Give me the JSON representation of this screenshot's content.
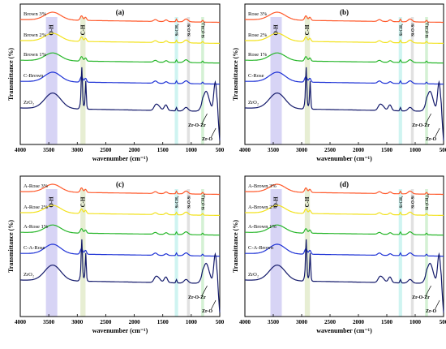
{
  "chart_data": [
    {
      "type": "line",
      "panel": "(a)",
      "xlabel": "wavenumber (cm⁻¹)",
      "ylabel": "Transmittance (%)",
      "xlim": [
        4000,
        500
      ],
      "xticks": [
        4000,
        3500,
        3000,
        2500,
        2000,
        1500,
        1000,
        500
      ],
      "band_labels": [
        "O-H",
        "C-H",
        "Si-CH₃",
        "Si-O-Si",
        "Si-(CH₃)₃"
      ],
      "band_centers": [
        3450,
        2900,
        1260,
        1050,
        800
      ],
      "peak_annotations": [
        "Zr-O-Zr",
        "Zr-O"
      ],
      "series": [
        {
          "name": "Brown 3%",
          "color": "#ff5a2c"
        },
        {
          "name": "Brown 2%",
          "color": "#f2e21e"
        },
        {
          "name": "Brown 1%",
          "color": "#27b62a"
        },
        {
          "name": "C-Brown",
          "color": "#1f33d6"
        },
        {
          "name": "ZrO₂",
          "color": "#141a6b"
        }
      ]
    },
    {
      "type": "line",
      "panel": "(b)",
      "xlabel": "wavenumber (cm⁻¹)",
      "ylabel": "Transmittance (%)",
      "xlim": [
        4000,
        500
      ],
      "xticks": [
        4000,
        3500,
        3000,
        2500,
        2000,
        1500,
        1000,
        500
      ],
      "band_labels": [
        "O-H",
        "C-H",
        "Si-CH₃",
        "Si-O-Si",
        "Si-(CH₃)₃"
      ],
      "band_centers": [
        3450,
        2900,
        1260,
        1050,
        800
      ],
      "peak_annotations": [
        "Zr-O-Zr",
        "Zr-O"
      ],
      "series": [
        {
          "name": "Rose 3%",
          "color": "#ff5a2c"
        },
        {
          "name": "Rose 2%",
          "color": "#f2e21e"
        },
        {
          "name": "Rose 1%",
          "color": "#27b62a"
        },
        {
          "name": "C-Rose",
          "color": "#1f33d6"
        },
        {
          "name": "ZrO₂",
          "color": "#141a6b"
        }
      ]
    },
    {
      "type": "line",
      "panel": "(c)",
      "xlabel": "wavenumber (cm⁻¹)",
      "ylabel": "Transmittance (%)",
      "xlim": [
        4000,
        500
      ],
      "xticks": [
        4000,
        3500,
        3000,
        2500,
        2000,
        1500,
        1000,
        500
      ],
      "band_labels": [
        "O-H",
        "C-H",
        "Si-CH₃",
        "Si-O-Si",
        "Si-(CH₃)₃"
      ],
      "band_centers": [
        3450,
        2900,
        1260,
        1050,
        800
      ],
      "peak_annotations": [
        "Zr-O-Zr",
        "Zr-O"
      ],
      "series": [
        {
          "name": "A-Rose 3%",
          "color": "#ff5a2c"
        },
        {
          "name": "A-Rose 2%",
          "color": "#f2e21e"
        },
        {
          "name": "A-Rose 1%",
          "color": "#27b62a"
        },
        {
          "name": "C-A-Rose",
          "color": "#1f33d6"
        },
        {
          "name": "ZrO₂",
          "color": "#141a6b"
        }
      ]
    },
    {
      "type": "line",
      "panel": "(d)",
      "xlabel": "wavenumber (cm⁻¹)",
      "ylabel": "Transmittance (%)",
      "xlim": [
        4000,
        500
      ],
      "xticks": [
        4000,
        3500,
        3000,
        2500,
        2000,
        1500,
        1000,
        500
      ],
      "band_labels": [
        "O-H",
        "C-H",
        "Si-CH₃",
        "Si-O-Si",
        "Si-(CH₃)₃"
      ],
      "band_centers": [
        3450,
        2900,
        1260,
        1050,
        800
      ],
      "peak_annotations": [
        "Zr-O-Zr",
        "Zr-O"
      ],
      "series": [
        {
          "name": "A-Brown 3%",
          "color": "#ff5a2c"
        },
        {
          "name": "A-Brown 2%",
          "color": "#f2e21e"
        },
        {
          "name": "A-Brown 1%",
          "color": "#27b62a"
        },
        {
          "name": "C-A-Brown",
          "color": "#1f33d6"
        },
        {
          "name": "ZrO₂",
          "color": "#141a6b"
        }
      ]
    }
  ],
  "colors": {
    "oh_band": "#c9c6f2",
    "ch_band": "#dfe8c4",
    "sich3_band": "#bff0ec",
    "sios_band": "#d7d7d7",
    "sich33_band": "#c6ecc6"
  }
}
